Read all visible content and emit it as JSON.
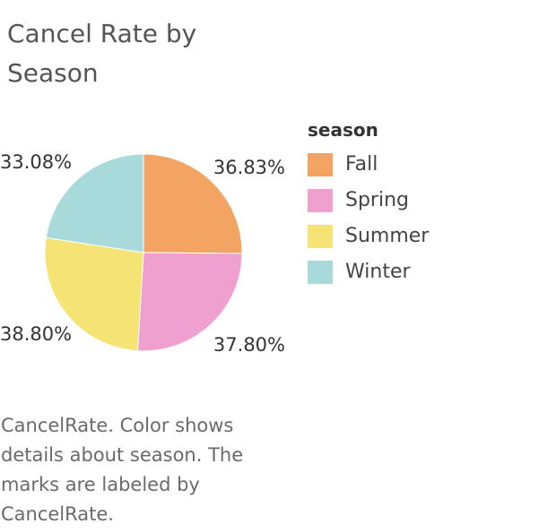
{
  "chart": {
    "title": "Cancel Rate by Season",
    "caption": "CancelRate.  Color shows details about season.  The marks are labeled by CancelRate."
  },
  "legend": {
    "title": "season",
    "items": [
      {
        "label": "Fall",
        "color": "#F4A462"
      },
      {
        "label": "Spring",
        "color": "#F0A0CF"
      },
      {
        "label": "Summer",
        "color": "#F5E473"
      },
      {
        "label": "Winter",
        "color": "#A8DADB"
      }
    ]
  },
  "chart_data": {
    "type": "pie",
    "title": "Cancel Rate by Season",
    "categories": [
      "Fall",
      "Spring",
      "Summer",
      "Winter"
    ],
    "values": [
      36.83,
      37.8,
      38.8,
      33.08
    ],
    "labels": [
      "36.83%",
      "37.80%",
      "38.80%",
      "33.08%"
    ],
    "colors": [
      "#F4A462",
      "#F0A0CF",
      "#F5E473",
      "#A8DADB"
    ],
    "legend_position": "right",
    "start": "top",
    "direction": "clockwise"
  }
}
